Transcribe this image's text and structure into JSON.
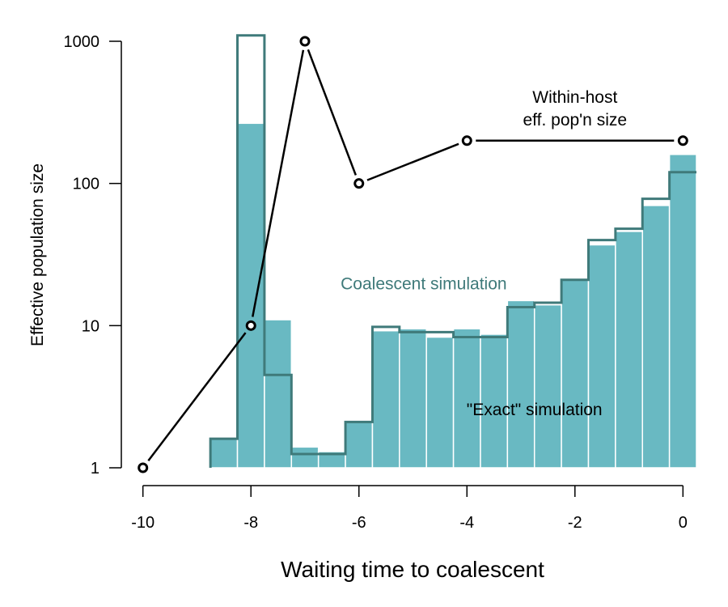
{
  "chart_data": {
    "type": "bar",
    "xlabel": "Waiting time to coalescent",
    "ylabel": "Effective population size",
    "xlim": [
      -10.4,
      0.25
    ],
    "ylim": [
      1,
      1000
    ],
    "y_scale": "log",
    "grid": false,
    "x_ticks": [
      {
        "value": -10,
        "label": "-10"
      },
      {
        "value": -8,
        "label": "-8"
      },
      {
        "value": -6,
        "label": "-6"
      },
      {
        "value": -4,
        "label": "-4"
      },
      {
        "value": -2,
        "label": "-2"
      },
      {
        "value": 0,
        "label": "0"
      }
    ],
    "y_ticks": [
      {
        "value": 1,
        "label": "1"
      },
      {
        "value": 10,
        "label": "10"
      },
      {
        "value": 100,
        "label": "100"
      },
      {
        "value": 1000,
        "label": "1000"
      }
    ],
    "colors": {
      "exact_fill": "#69b9c2",
      "bar_edge": "#ffffff",
      "coalescent_line": "#3f7a7a",
      "within_host_line": "#000000",
      "axis": "#000000"
    },
    "bin_edges": [
      -9.25,
      -8.75,
      -8.25,
      -7.75,
      -7.25,
      -6.75,
      -6.25,
      -5.75,
      -5.25,
      -4.75,
      -4.25,
      -3.75,
      -3.25,
      -2.75,
      -2.25,
      -1.75,
      -1.25,
      -0.75,
      -0.25,
      0.25
    ],
    "series": [
      {
        "name": "\"Exact\" simulation",
        "render": "filled-bars",
        "values": [
          1.0,
          1.6,
          265,
          11,
          1.4,
          1.3,
          2.1,
          9.2,
          9.5,
          8.3,
          9.5,
          8.7,
          15,
          14,
          21,
          37,
          46,
          70,
          160
        ]
      },
      {
        "name": "Coalescent simulation",
        "render": "step-outline",
        "values": [
          1.0,
          1.6,
          1100,
          4.5,
          1.25,
          1.25,
          2.1,
          9.8,
          9.0,
          9.0,
          8.3,
          8.3,
          13.5,
          14.5,
          21,
          40,
          48,
          78,
          120
        ]
      },
      {
        "name": "Within-host eff. pop'n size",
        "render": "line-points",
        "x": [
          -10,
          -8,
          -7,
          -6,
          -4,
          0
        ],
        "y": [
          1,
          10,
          1000,
          100,
          200,
          200
        ]
      }
    ],
    "annotations": [
      {
        "id": "coalescent",
        "lines": [
          "Coalescent simulation"
        ],
        "x": -4.8,
        "y": 18,
        "color": "#3f7a7a"
      },
      {
        "id": "exact",
        "lines": [
          "\"Exact\" simulation"
        ],
        "x": -2.75,
        "y": 2.35,
        "color": "#000000"
      },
      {
        "id": "within-host",
        "lines": [
          "Within-host",
          "eff. pop'n size"
        ],
        "x": -2.0,
        "y": 370,
        "color": "#000000"
      }
    ]
  }
}
